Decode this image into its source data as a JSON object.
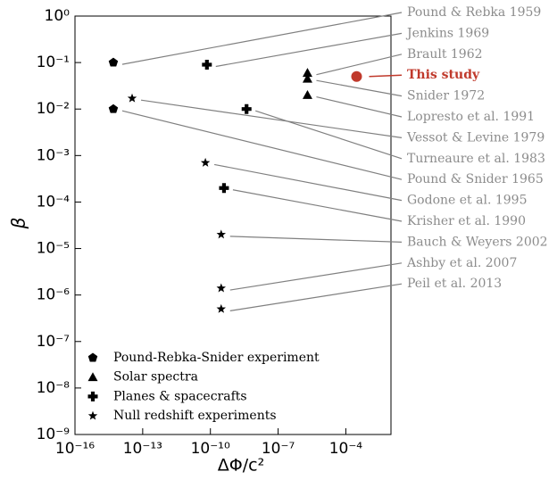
{
  "chart_data": {
    "type": "scatter",
    "xlabel": "ΔΦ/c²",
    "ylabel": "β",
    "xscale": "log",
    "yscale": "log",
    "xlim": [
      1e-16,
      0.01
    ],
    "ylim": [
      1e-09,
      1
    ],
    "xticks": [
      {
        "value": 1e-16,
        "label": "10⁻¹⁶"
      },
      {
        "value": 1e-13,
        "label": "10⁻¹³"
      },
      {
        "value": 1e-10,
        "label": "10⁻¹⁰"
      },
      {
        "value": 1e-07,
        "label": "10⁻⁷"
      },
      {
        "value": 0.0001,
        "label": "10⁻⁴"
      }
    ],
    "yticks": [
      {
        "value": 1,
        "label": "10⁰"
      },
      {
        "value": 0.1,
        "label": "10⁻¹"
      },
      {
        "value": 0.01,
        "label": "10⁻²"
      },
      {
        "value": 0.001,
        "label": "10⁻³"
      },
      {
        "value": 0.0001,
        "label": "10⁻⁴"
      },
      {
        "value": 1e-05,
        "label": "10⁻⁵"
      },
      {
        "value": 1e-06,
        "label": "10⁻⁶"
      },
      {
        "value": 1e-07,
        "label": "10⁻⁷"
      },
      {
        "value": 1e-08,
        "label": "10⁻⁸"
      },
      {
        "value": 1e-09,
        "label": "10⁻⁹"
      }
    ],
    "legend": "lower left",
    "annotation_color": "#8c8c8c",
    "series": [
      {
        "name": "Pound-Rebka-Snider experiment",
        "marker": "pentagon",
        "color": "#000000",
        "x": [
          5e-15,
          5e-15
        ],
        "y": [
          0.1,
          0.01
        ],
        "labels": [
          "Pound & Rebka 1959",
          "Pound & Snider 1965"
        ]
      },
      {
        "name": "Solar spectra",
        "marker": "triangle",
        "color": "#000000",
        "x": [
          2e-06,
          2e-06,
          2e-06
        ],
        "y": [
          0.06,
          0.045,
          0.02
        ],
        "labels": [
          "Brault 1962",
          "Snider 1972",
          "Lopresto et al. 1991"
        ]
      },
      {
        "name": "Planes & spacecrafts",
        "marker": "plus",
        "color": "#000000",
        "x": [
          7e-11,
          4e-09,
          4e-10
        ],
        "y": [
          0.09,
          0.01,
          0.0002
        ],
        "labels": [
          "Jenkins 1969",
          "Turneaure et al. 1983",
          "Krisher et al. 1990"
        ]
      },
      {
        "name": "Null redshift experiments",
        "marker": "star",
        "color": "#000000",
        "x": [
          3.4e-14,
          6e-11,
          3e-10,
          3e-10,
          3e-10
        ],
        "y": [
          0.017,
          0.0007,
          2e-05,
          1.4e-06,
          5e-07
        ],
        "labels": [
          "Vessot & Levine 1979",
          "Godone et al. 1995",
          "Bauch & Weyers 2002",
          "Ashby et al. 2007",
          "Peil et al. 2013"
        ]
      }
    ],
    "highlight": {
      "label": "This study",
      "x": 0.0003,
      "y": 0.05,
      "color": "#c0392b"
    }
  }
}
